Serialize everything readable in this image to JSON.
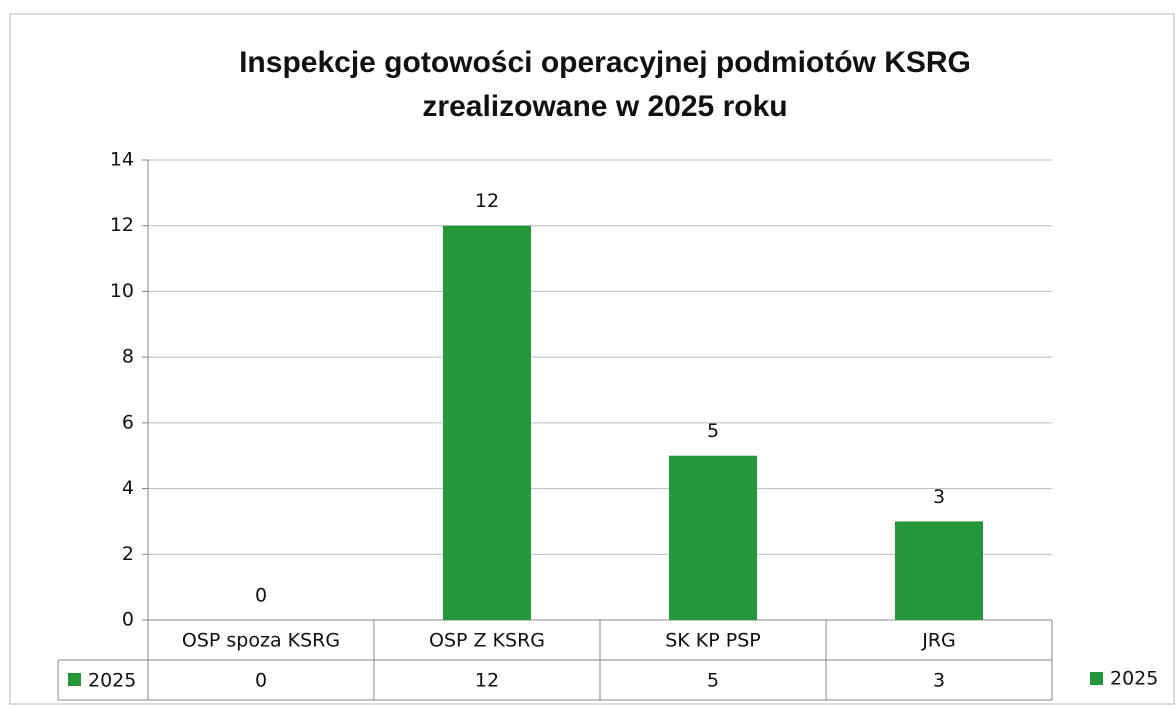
{
  "chart_data": {
    "type": "bar",
    "title": [
      "Inspekcje gotowości operacyjnej podmiotów KSRG",
      "zrealizowane w 2025 roku"
    ],
    "categories": [
      "OSP spoza KSRG",
      "OSP Z KSRG",
      "SK KP PSP",
      "JRG"
    ],
    "series": [
      {
        "name": "2025",
        "color": "#23973a",
        "values": [
          0,
          12,
          5,
          3
        ]
      }
    ],
    "ylim": [
      0,
      14
    ],
    "yticks": [
      0,
      2,
      4,
      6,
      8,
      10,
      12,
      14
    ],
    "grid": true,
    "legend": "right",
    "data_table": true
  }
}
